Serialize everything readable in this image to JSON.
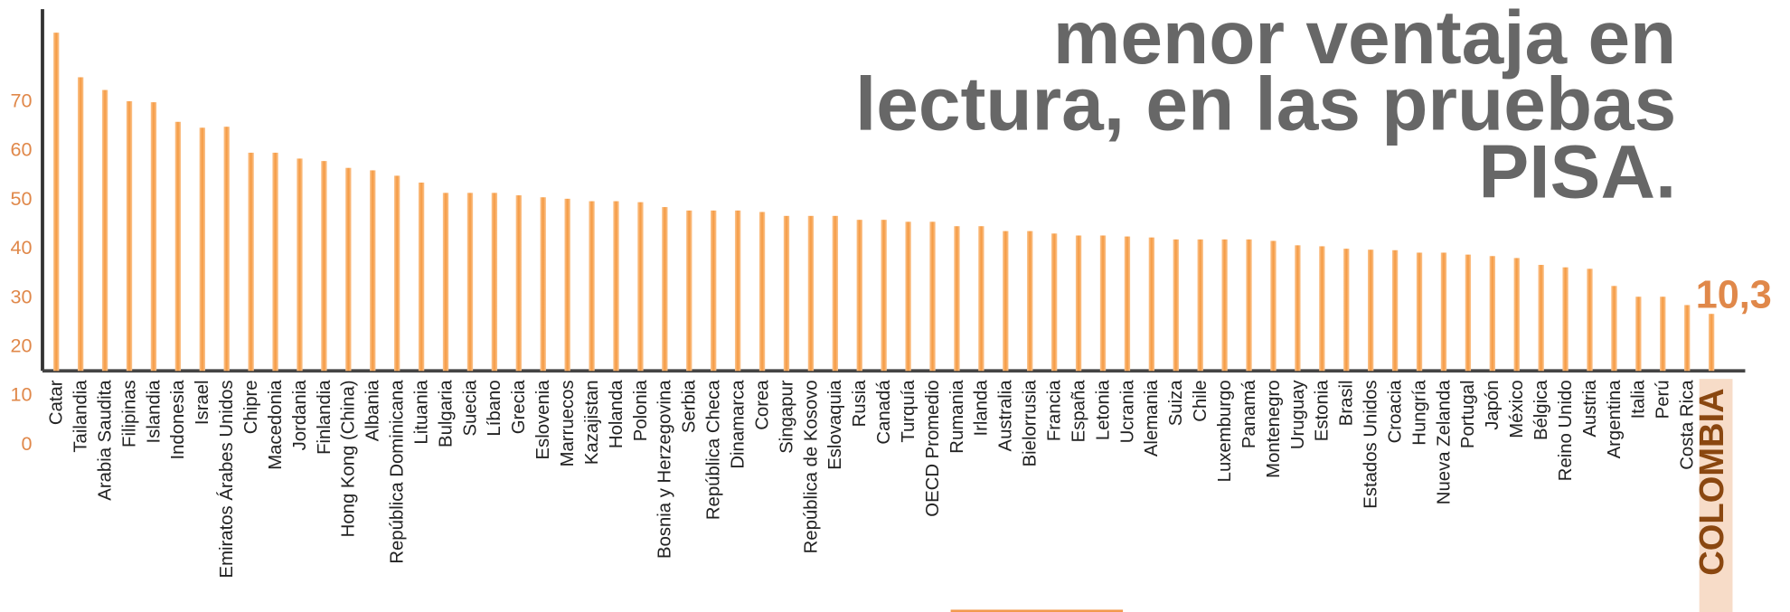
{
  "chart_data": {
    "type": "bar",
    "title": [
      "menor ventaja en",
      "lectura, en las pruebas",
      "PISA."
    ],
    "annotation": "10,3",
    "categories": [
      "Catar",
      "Tailandia",
      "Arabia Saudita",
      "Filipinas",
      "Islandia",
      "Indonesia",
      "Israel",
      "Emiratos Árabes Unidos",
      "Chipre",
      "Macedonia",
      "Jordania",
      "Finlandia",
      "Hong Kong (China)",
      "Albania",
      "República Dominicana",
      "Lituania",
      "Bulgaria",
      "Suecia",
      "Líbano",
      "Grecia",
      "Eslovenia",
      "Marruecos",
      "Kazajistan",
      "Holanda",
      "Polonia",
      "Bosnia y Herzegovina",
      "Serbia",
      "República Checa",
      "Dinamarca",
      "Corea",
      "Singapur",
      "República de Kosovo",
      "Eslovaquia",
      "Rusia",
      "Canadá",
      "Turquía",
      "OECD Promedio",
      "Rumania",
      "Irlanda",
      "Australia",
      "Bielorrusia",
      "Francia",
      "España",
      "Letonia",
      "Ucrania",
      "Alemania",
      "Suiza",
      "Chile",
      "Luxemburgo",
      "Panamá",
      "Montenegro",
      "Uruguay",
      "Estonia",
      "Brasil",
      "Estados Unidos",
      "Croacia",
      "Hungría",
      "Nueva Zelanda",
      "Portugal",
      "Japón",
      "México",
      "Bélgica",
      "Reino Unido",
      "Austria",
      "Argentina",
      "Italia",
      "Perú",
      "Costa Rica",
      "COLOMBIA"
    ],
    "values": [
      83.8,
      74.7,
      72.1,
      69.8,
      69.6,
      65.6,
      64.4,
      64.6,
      59.3,
      59.3,
      58.1,
      57.6,
      56.2,
      55.7,
      54.6,
      53.2,
      51.1,
      51.1,
      51.1,
      50.6,
      50.2,
      49.9,
      49.4,
      49.4,
      49.2,
      48.2,
      47.5,
      47.5,
      47.5,
      47.2,
      46.4,
      46.4,
      46.4,
      45.6,
      45.6,
      45.2,
      45.2,
      44.3,
      44.3,
      43.3,
      43.3,
      42.8,
      42.4,
      42.4,
      42.2,
      42.0,
      41.6,
      41.6,
      41.6,
      41.6,
      41.3,
      40.4,
      40.2,
      39.7,
      39.5,
      39.4,
      38.9,
      38.9,
      38.5,
      38.2,
      37.8,
      36.4,
      35.9,
      35.6,
      32.1,
      29.9,
      29.9,
      28.2,
      26.4
    ],
    "color": "#f7a04c",
    "highlight_index": 68,
    "highlight_color": "#8a4710",
    "ylim": [
      0,
      90
    ],
    "yticks": [
      0,
      10,
      20,
      30,
      40,
      50,
      60,
      70
    ],
    "grid": false
  }
}
